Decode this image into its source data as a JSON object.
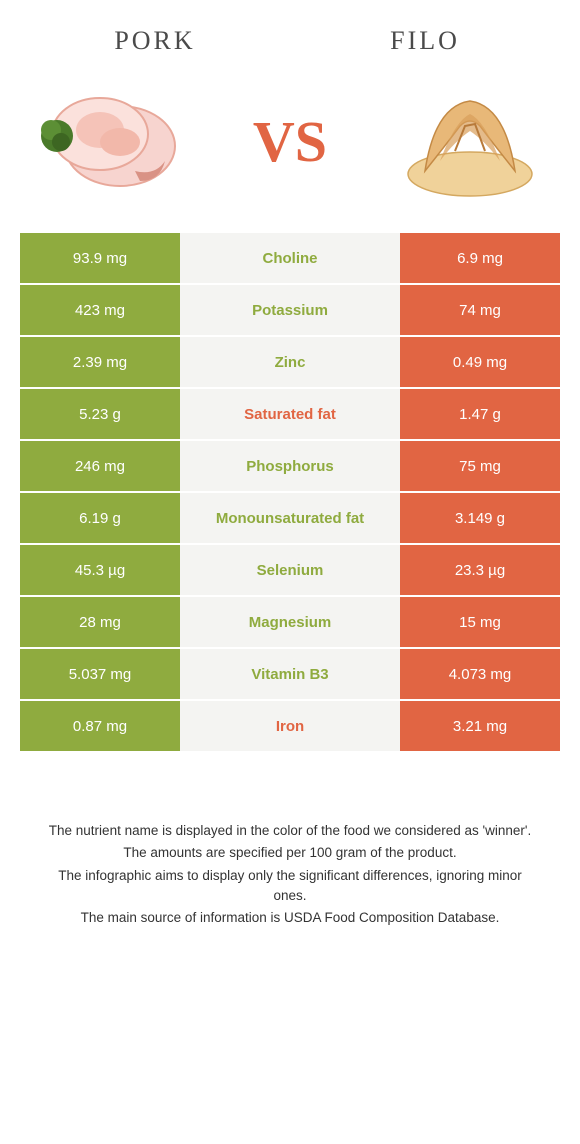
{
  "foods": {
    "left": {
      "name": "Pork",
      "color": "#8fab3f"
    },
    "right": {
      "name": "Filo",
      "color": "#e16543"
    }
  },
  "vs_label": "VS",
  "colors": {
    "left_bg": "#8fab3f",
    "right_bg": "#e16543",
    "mid_bg": "#f4f4f2",
    "row_border": "#ffffff",
    "title_text": "#4a4a4a",
    "footer_text": "#333333"
  },
  "rows": [
    {
      "left": "93.9 mg",
      "label": "Choline",
      "right": "6.9 mg",
      "winner": "left"
    },
    {
      "left": "423 mg",
      "label": "Potassium",
      "right": "74 mg",
      "winner": "left"
    },
    {
      "left": "2.39 mg",
      "label": "Zinc",
      "right": "0.49 mg",
      "winner": "left"
    },
    {
      "left": "5.23 g",
      "label": "Saturated fat",
      "right": "1.47 g",
      "winner": "right"
    },
    {
      "left": "246 mg",
      "label": "Phosphorus",
      "right": "75 mg",
      "winner": "left"
    },
    {
      "left": "6.19 g",
      "label": "Monounsaturated fat",
      "right": "3.149 g",
      "winner": "left"
    },
    {
      "left": "45.3 µg",
      "label": "Selenium",
      "right": "23.3 µg",
      "winner": "left"
    },
    {
      "left": "28 mg",
      "label": "Magnesium",
      "right": "15 mg",
      "winner": "left"
    },
    {
      "left": "5.037 mg",
      "label": "Vitamin B3",
      "right": "4.073 mg",
      "winner": "left"
    },
    {
      "left": "0.87 mg",
      "label": "Iron",
      "right": "3.21 mg",
      "winner": "right"
    }
  ],
  "footer": {
    "line1": "The nutrient name is displayed in the color of the food we considered as 'winner'.",
    "line2": "The amounts are specified per 100 gram of the product.",
    "line3": "The infographic aims to display only the significant differences, ignoring minor ones.",
    "line4": "The main source of information is USDA Food Composition Database."
  }
}
